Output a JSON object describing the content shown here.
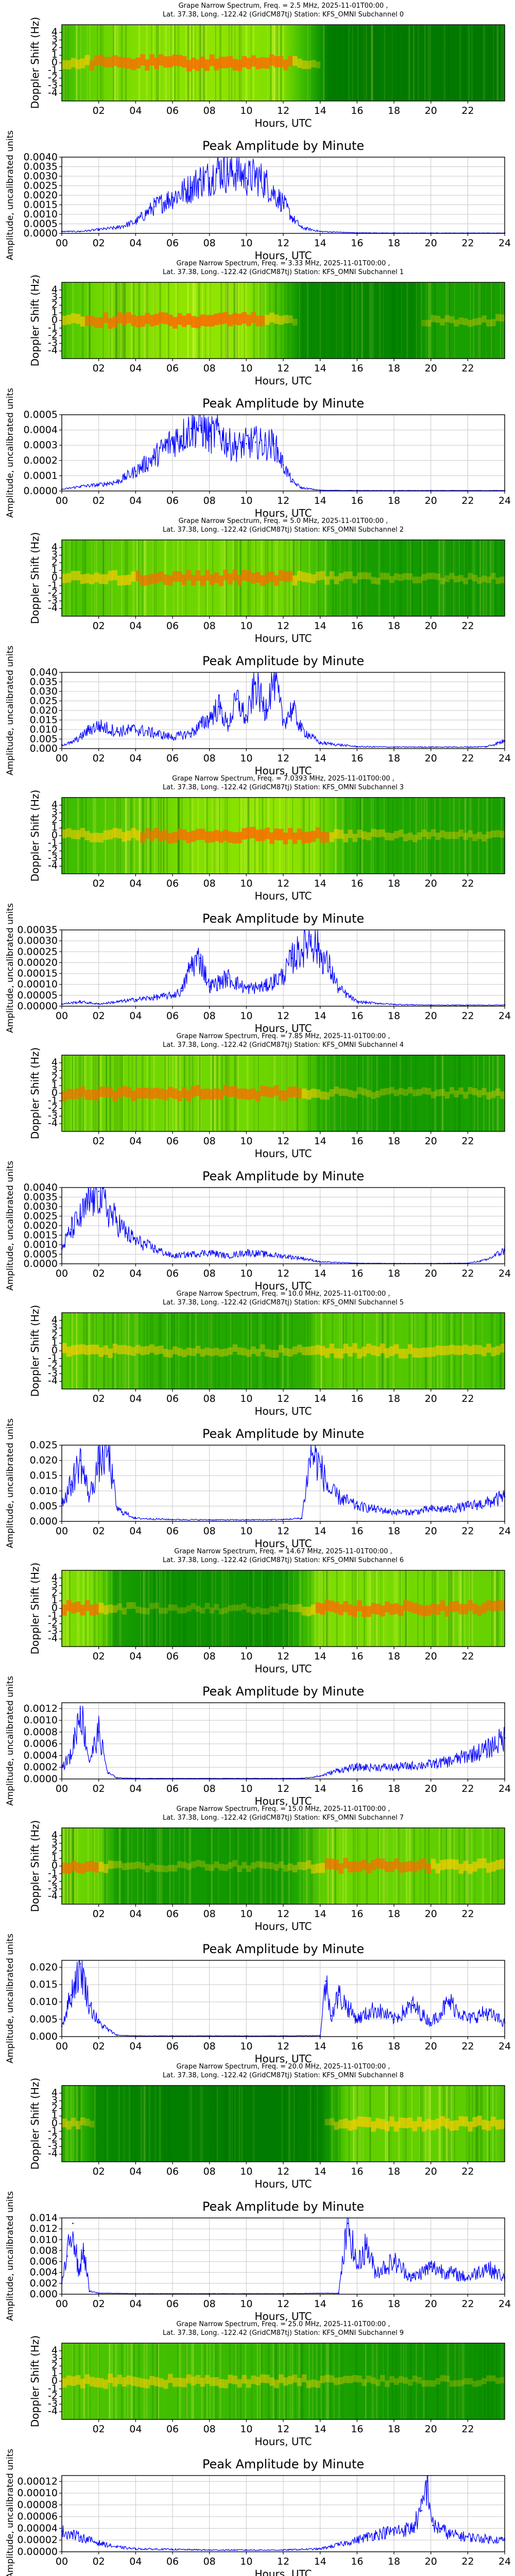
{
  "figure": {
    "spectrogram_ylabel": "Doppler Shift (Hz)",
    "amplitude_title": "Peak Amplitude by Minute",
    "amplitude_ylabel": "Amplitude, uncalibrated units",
    "xlabel": "Hours, UTC",
    "spectrogram_xticks": [
      "02",
      "04",
      "06",
      "08",
      "10",
      "12",
      "14",
      "16",
      "18",
      "20",
      "22"
    ],
    "amplitude_xticks": [
      "00",
      "02",
      "04",
      "06",
      "08",
      "10",
      "12",
      "14",
      "16",
      "18",
      "20",
      "22",
      "24"
    ],
    "spectrogram_yticks": [
      "4",
      "3",
      "2",
      "1",
      "0",
      "-1",
      "-2",
      "-3",
      "-4"
    ],
    "colors": {
      "line": "#0000ff",
      "grid": "#c8c8c8",
      "spec_low": "#008000",
      "spec_mid": "#ffff00",
      "spec_high": "#ff0000"
    }
  },
  "chart_data": [
    {
      "type": "heatmap",
      "title_line1": "Grape Narrow Spectrum, Freq. = 2.5 MHz, 2025-11-01T00:00 ,",
      "title_line2": "Lat. 37.38, Long. -122.42 (GridCM87tj) Station: KFS_OMNI Subchannel 0",
      "xlim": [
        0,
        24
      ],
      "ylim": [
        -5,
        5
      ],
      "activity": [
        [
          0,
          0.55
        ],
        [
          1.5,
          0.7
        ],
        [
          4,
          0.8
        ],
        [
          8,
          0.85
        ],
        [
          12,
          0.8
        ],
        [
          13.5,
          0.45
        ],
        [
          14.5,
          0.1
        ],
        [
          24,
          0.08
        ]
      ]
    },
    {
      "type": "line",
      "title": "Peak Amplitude by Minute",
      "xlim": [
        0,
        24
      ],
      "ylim": [
        0,
        0.004
      ],
      "yticks": [
        "0.0000",
        "0.0005",
        "0.0010",
        "0.0015",
        "0.0020",
        "0.0025",
        "0.0030",
        "0.0035",
        "0.0040"
      ],
      "x": [
        0,
        1,
        2,
        3,
        4,
        5,
        6,
        7,
        7.5,
        8,
        8.5,
        9,
        9.5,
        10,
        10.5,
        11,
        11.5,
        12,
        12.5,
        13,
        14,
        16,
        18,
        20,
        22,
        24
      ],
      "y": [
        0.0001,
        0.0001,
        0.0002,
        0.0003,
        0.0006,
        0.0014,
        0.0019,
        0.0024,
        0.0028,
        0.0029,
        0.0034,
        0.0031,
        0.0033,
        0.0029,
        0.003,
        0.0027,
        0.0021,
        0.0016,
        0.0008,
        0.0003,
        0.0001,
        3e-05,
        2e-05,
        2e-05,
        2e-05,
        2e-05
      ]
    },
    {
      "type": "heatmap",
      "title_line1": "Grape Narrow Spectrum, Freq. = 3.33 MHz, 2025-11-01T00:00 ,",
      "title_line2": "Lat. 37.38, Long. -122.42 (GridCM87tj) Station: KFS_OMNI Subchannel 1",
      "xlim": [
        0,
        24
      ],
      "ylim": [
        -5,
        5
      ],
      "activity": [
        [
          0,
          0.6
        ],
        [
          2,
          0.75
        ],
        [
          6,
          0.85
        ],
        [
          10,
          0.85
        ],
        [
          12,
          0.55
        ],
        [
          13,
          0.2
        ],
        [
          19,
          0.15
        ],
        [
          20,
          0.35
        ],
        [
          24,
          0.35
        ]
      ]
    },
    {
      "type": "line",
      "title": "Peak Amplitude by Minute",
      "xlim": [
        0,
        24
      ],
      "ylim": [
        0,
        0.0005
      ],
      "yticks": [
        "0.0000",
        "0.0001",
        "0.0002",
        "0.0003",
        "0.0004",
        "0.0005"
      ],
      "x": [
        0,
        1,
        2,
        3,
        4,
        5,
        6,
        6.5,
        7,
        7.5,
        8,
        8.5,
        9,
        9.5,
        10,
        10.5,
        11,
        11.5,
        12,
        12.5,
        13,
        14,
        16,
        20,
        24
      ],
      "y": [
        1e-05,
        3e-05,
        4e-05,
        6e-05,
        0.00013,
        0.00022,
        0.00033,
        0.00036,
        0.00041,
        0.00043,
        0.00036,
        0.00039,
        0.00031,
        0.00029,
        0.00031,
        0.00032,
        0.0003,
        0.00031,
        0.00017,
        6e-05,
        2e-05,
        5e-06,
        3e-06,
        3e-06,
        3e-06
      ]
    },
    {
      "type": "heatmap",
      "title_line1": "Grape Narrow Spectrum, Freq. = 5.0 MHz, 2025-11-01T00:00 ,",
      "title_line2": "Lat. 37.38, Long. -122.42 (GridCM87tj) Station: KFS_OMNI Subchannel 2",
      "xlim": [
        0,
        24
      ],
      "ylim": [
        -5,
        5
      ],
      "activity": [
        [
          0,
          0.6
        ],
        [
          4,
          0.7
        ],
        [
          8,
          0.75
        ],
        [
          12,
          0.75
        ],
        [
          14,
          0.55
        ],
        [
          16,
          0.35
        ],
        [
          20,
          0.3
        ],
        [
          24,
          0.3
        ]
      ]
    },
    {
      "type": "line",
      "title": "Peak Amplitude by Minute",
      "xlim": [
        0,
        24
      ],
      "ylim": [
        0,
        0.04
      ],
      "yticks": [
        "0.000",
        "0.005",
        "0.010",
        "0.015",
        "0.020",
        "0.025",
        "0.030",
        "0.035",
        "0.040"
      ],
      "x": [
        0,
        0.5,
        1,
        1.5,
        2,
        3,
        4,
        5,
        6,
        7,
        8,
        8.5,
        9,
        9.5,
        10,
        10.5,
        11,
        11.5,
        12,
        12.5,
        13,
        14,
        16,
        18,
        20,
        22,
        23,
        24
      ],
      "y": [
        0.002,
        0.003,
        0.006,
        0.01,
        0.012,
        0.009,
        0.01,
        0.008,
        0.006,
        0.008,
        0.016,
        0.022,
        0.012,
        0.026,
        0.015,
        0.034,
        0.02,
        0.038,
        0.014,
        0.021,
        0.01,
        0.003,
        0.001,
        0.0008,
        0.0008,
        0.0008,
        0.001,
        0.004
      ]
    },
    {
      "type": "heatmap",
      "title_line1": "Grape Narrow Spectrum, Freq. = 7.0393 MHz, 2025-11-01T00:00 ,",
      "title_line2": "Lat. 37.38, Long. -122.42 (GridCM87tj) Station: KFS_OMNI Subchannel 3",
      "xlim": [
        0,
        24
      ],
      "ylim": [
        -5,
        5
      ],
      "activity": [
        [
          0,
          0.55
        ],
        [
          3,
          0.65
        ],
        [
          7,
          0.8
        ],
        [
          12,
          0.85
        ],
        [
          14,
          0.8
        ],
        [
          15.5,
          0.5
        ],
        [
          18,
          0.4
        ],
        [
          24,
          0.35
        ]
      ]
    },
    {
      "type": "line",
      "title": "Peak Amplitude by Minute",
      "xlim": [
        0,
        24
      ],
      "ylim": [
        0,
        0.00035
      ],
      "yticks": [
        "0.00000",
        "0.00005",
        "0.00010",
        "0.00015",
        "0.00020",
        "0.00025",
        "0.00030",
        "0.00035"
      ],
      "x": [
        0,
        1,
        2,
        3,
        4,
        5,
        6,
        6.5,
        7,
        7.5,
        8,
        9,
        10,
        11,
        12,
        12.5,
        13,
        13.5,
        14,
        14.5,
        15,
        16,
        18,
        20,
        22,
        24
      ],
      "y": [
        1e-05,
        2e-05,
        1e-05,
        2e-05,
        3e-05,
        4e-05,
        5e-05,
        7e-05,
        0.00019,
        0.00022,
        9e-05,
        0.00013,
        8e-05,
        9e-05,
        0.00014,
        0.00022,
        0.00026,
        0.00032,
        0.00024,
        0.00018,
        8e-05,
        2e-05,
        8e-06,
        5e-06,
        5e-06,
        5e-06
      ]
    },
    {
      "type": "heatmap",
      "title_line1": "Grape Narrow Spectrum, Freq. = 7.85 MHz, 2025-11-01T00:00 ,",
      "title_line2": "Lat. 37.38, Long. -122.42 (GridCM87tj) Station: KFS_OMNI Subchannel 4",
      "xlim": [
        0,
        24
      ],
      "ylim": [
        -5,
        5
      ],
      "activity": [
        [
          0,
          0.7
        ],
        [
          4,
          0.75
        ],
        [
          10,
          0.75
        ],
        [
          13,
          0.7
        ],
        [
          14.5,
          0.4
        ],
        [
          18,
          0.3
        ],
        [
          22,
          0.35
        ],
        [
          24,
          0.4
        ]
      ]
    },
    {
      "type": "line",
      "title": "Peak Amplitude by Minute",
      "xlim": [
        0,
        24
      ],
      "ylim": [
        0,
        0.004
      ],
      "yticks": [
        "0.0000",
        "0.0005",
        "0.0010",
        "0.0015",
        "0.0020",
        "0.0025",
        "0.0030",
        "0.0035",
        "0.0040"
      ],
      "x": [
        0,
        0.5,
        1,
        1.5,
        2,
        2.5,
        3,
        3.5,
        4,
        5,
        6,
        7,
        8,
        9,
        10,
        11,
        12,
        13,
        14,
        16,
        18,
        20,
        22,
        23,
        24
      ],
      "y": [
        0.0008,
        0.0018,
        0.0024,
        0.0032,
        0.0038,
        0.0028,
        0.0022,
        0.0016,
        0.0012,
        0.0008,
        0.0004,
        0.0005,
        0.0006,
        0.0004,
        0.0006,
        0.0005,
        0.0004,
        0.0003,
        0.0001,
        3e-05,
        2e-05,
        2e-05,
        3e-05,
        0.0002,
        0.0007
      ]
    },
    {
      "type": "heatmap",
      "title_line1": "Grape Narrow Spectrum, Freq. = 10.0 MHz, 2025-11-01T00:00 ,",
      "title_line2": "Lat. 37.38, Long. -122.42 (GridCM87tj) Station: KFS_OMNI Subchannel 5",
      "xlim": [
        0,
        24
      ],
      "ylim": [
        -5,
        5
      ],
      "activity": [
        [
          0,
          0.7
        ],
        [
          3,
          0.6
        ],
        [
          6,
          0.45
        ],
        [
          10,
          0.4
        ],
        [
          13,
          0.45
        ],
        [
          14,
          0.65
        ],
        [
          18,
          0.65
        ],
        [
          22,
          0.6
        ],
        [
          24,
          0.55
        ]
      ]
    },
    {
      "type": "line",
      "title": "Peak Amplitude by Minute",
      "xlim": [
        0,
        24
      ],
      "ylim": [
        0,
        0.025
      ],
      "yticks": [
        "0.000",
        "0.005",
        "0.010",
        "0.015",
        "0.020",
        "0.025"
      ],
      "x": [
        0,
        0.5,
        1,
        1.5,
        2,
        2.5,
        3,
        4,
        6,
        8,
        10,
        12,
        13,
        13.5,
        14,
        14.5,
        15,
        16,
        17,
        18,
        19,
        20,
        21,
        22,
        23,
        24
      ],
      "y": [
        0.006,
        0.012,
        0.02,
        0.008,
        0.019,
        0.023,
        0.004,
        0.001,
        0.0006,
        0.0005,
        0.0005,
        0.0006,
        0.001,
        0.023,
        0.018,
        0.01,
        0.008,
        0.005,
        0.004,
        0.003,
        0.003,
        0.004,
        0.004,
        0.005,
        0.006,
        0.008
      ]
    },
    {
      "type": "heatmap",
      "title_line1": "Grape Narrow Spectrum, Freq. = 14.67 MHz, 2025-11-01T00:00 ,",
      "title_line2": "Lat. 37.38, Long. -122.42 (GridCM87tj) Station: KFS_OMNI Subchannel 6",
      "xlim": [
        0,
        24
      ],
      "ylim": [
        -5,
        5
      ],
      "activity": [
        [
          0,
          0.8
        ],
        [
          2,
          0.75
        ],
        [
          3,
          0.35
        ],
        [
          5,
          0.25
        ],
        [
          12,
          0.25
        ],
        [
          13,
          0.5
        ],
        [
          14,
          0.8
        ],
        [
          20,
          0.75
        ],
        [
          24,
          0.7
        ]
      ]
    },
    {
      "type": "line",
      "title": "Peak Amplitude by Minute",
      "xlim": [
        0,
        24
      ],
      "ylim": [
        0,
        0.0013
      ],
      "yticks": [
        "0.0000",
        "0.0002",
        "0.0004",
        "0.0006",
        "0.0008",
        "0.0010",
        "0.0012"
      ],
      "x": [
        0,
        0.5,
        1,
        1.5,
        2,
        2.5,
        3,
        4,
        6,
        8,
        10,
        12,
        13,
        14,
        15,
        16,
        18,
        20,
        21,
        22,
        23,
        24
      ],
      "y": [
        0.0002,
        0.0004,
        0.0012,
        0.0003,
        0.0008,
        0.0001,
        2e-05,
        1e-05,
        1e-05,
        1e-05,
        1e-05,
        1e-05,
        1e-05,
        5e-05,
        0.00015,
        0.0002,
        0.0002,
        0.00025,
        0.0003,
        0.0004,
        0.0005,
        0.0007
      ]
    },
    {
      "type": "heatmap",
      "title_line1": "Grape Narrow Spectrum, Freq. = 15.0 MHz, 2025-11-01T00:00 ,",
      "title_line2": "Lat. 37.38, Long. -122.42 (GridCM87tj) Station: KFS_OMNI Subchannel 7",
      "xlim": [
        0,
        24
      ],
      "ylim": [
        -5,
        5
      ],
      "activity": [
        [
          0,
          0.75
        ],
        [
          2,
          0.7
        ],
        [
          3,
          0.35
        ],
        [
          6,
          0.3
        ],
        [
          12,
          0.3
        ],
        [
          13,
          0.45
        ],
        [
          14.5,
          0.75
        ],
        [
          20,
          0.7
        ],
        [
          24,
          0.65
        ]
      ]
    },
    {
      "type": "line",
      "title": "Peak Amplitude by Minute",
      "xlim": [
        0,
        24
      ],
      "ylim": [
        0,
        0.022
      ],
      "yticks": [
        "0.000",
        "0.005",
        "0.010",
        "0.015",
        "0.020"
      ],
      "x": [
        0,
        0.5,
        1,
        1.5,
        2,
        2.5,
        3,
        4,
        6,
        8,
        10,
        12,
        14,
        14.3,
        14.6,
        15,
        16,
        17,
        18,
        19,
        20,
        21,
        22,
        23,
        24
      ],
      "y": [
        0.003,
        0.012,
        0.021,
        0.009,
        0.004,
        0.002,
        0.0004,
        0.0002,
        0.0002,
        0.0002,
        0.0002,
        0.0002,
        0.0003,
        0.016,
        0.006,
        0.012,
        0.005,
        0.008,
        0.005,
        0.009,
        0.004,
        0.01,
        0.005,
        0.007,
        0.004
      ]
    },
    {
      "type": "heatmap",
      "title_line1": "Grape Narrow Spectrum, Freq. = 20.0 MHz, 2025-11-01T00:00 ,",
      "title_line2": "Lat. 37.38, Long. -122.42 (GridCM87tj) Station: KFS_OMNI Subchannel 8",
      "xlim": [
        0,
        24
      ],
      "ylim": [
        -5,
        5
      ],
      "activity": [
        [
          0,
          0.55
        ],
        [
          1,
          0.5
        ],
        [
          2,
          0.2
        ],
        [
          6,
          0.12
        ],
        [
          12,
          0.1
        ],
        [
          14,
          0.15
        ],
        [
          15.5,
          0.7
        ],
        [
          20,
          0.7
        ],
        [
          24,
          0.65
        ]
      ]
    },
    {
      "type": "line",
      "title": "Peak Amplitude by Minute",
      "xlim": [
        0,
        24
      ],
      "ylim": [
        0,
        0.014
      ],
      "yticks": [
        "0.000",
        "0.002",
        "0.004",
        "0.006",
        "0.008",
        "0.010",
        "0.012",
        "0.014"
      ],
      "x": [
        0,
        0.3,
        0.6,
        0.9,
        1.2,
        1.5,
        2,
        4,
        8,
        12,
        15,
        15.5,
        16,
        16.5,
        17,
        18,
        19,
        20,
        21,
        22,
        23,
        24
      ],
      "y": [
        0.002,
        0.007,
        0.013,
        0.004,
        0.008,
        0.0005,
        0.0002,
        0.0001,
        0.0001,
        0.0001,
        0.0002,
        0.013,
        0.005,
        0.009,
        0.004,
        0.006,
        0.003,
        0.005,
        0.004,
        0.003,
        0.005,
        0.003
      ]
    },
    {
      "type": "heatmap",
      "title_line1": "Grape Narrow Spectrum, Freq. = 25.0 MHz, 2025-11-01T00:00 ,",
      "title_line2": "Lat. 37.38, Long. -122.42 (GridCM87tj) Station: KFS_OMNI Subchannel 9",
      "xlim": [
        0,
        24
      ],
      "ylim": [
        -5,
        5
      ],
      "activity": [
        [
          0,
          0.65
        ],
        [
          3,
          0.6
        ],
        [
          8,
          0.55
        ],
        [
          12,
          0.5
        ],
        [
          14,
          0.4
        ],
        [
          18,
          0.3
        ],
        [
          24,
          0.25
        ]
      ]
    },
    {
      "type": "line",
      "title": "Peak Amplitude by Minute",
      "xlim": [
        0,
        24
      ],
      "ylim": [
        0,
        0.00013
      ],
      "yticks": [
        "0.00000",
        "0.00002",
        "0.00004",
        "0.00006",
        "0.00008",
        "0.00010",
        "0.00012"
      ],
      "x": [
        0,
        1,
        2,
        3,
        4,
        6,
        8,
        10,
        12,
        14,
        15,
        16,
        17,
        18,
        19,
        19.5,
        19.8,
        20.1,
        20.5,
        21,
        22,
        23,
        24
      ],
      "y": [
        3.5e-05,
        2.5e-05,
        1.5e-05,
        8e-06,
        5e-06,
        4e-06,
        3e-06,
        3e-06,
        3e-06,
        5e-06,
        1.2e-05,
        2e-05,
        3e-05,
        3.5e-05,
        4e-05,
        7e-05,
        0.00012,
        4.5e-05,
        4e-05,
        3e-05,
        2.5e-05,
        2.2e-05,
        2e-05
      ]
    }
  ]
}
